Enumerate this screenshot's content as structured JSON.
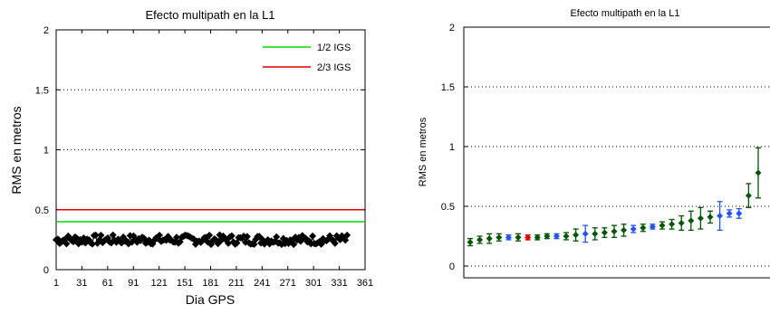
{
  "chart_data": [
    {
      "type": "line",
      "title": "Efecto multipath en la L1",
      "xlabel": "Dia GPS",
      "ylabel": "RMS en metros",
      "xlim": [
        1,
        361
      ],
      "ylim": [
        0,
        2
      ],
      "grid": "y-dotted",
      "x_tick_labels": [
        "1",
        "31",
        "61",
        "91",
        "121",
        "151",
        "181",
        "211",
        "241",
        "271",
        "301",
        "331",
        "361"
      ],
      "y_tick_labels": [
        "0",
        "0.5",
        "1",
        "1.5",
        "2"
      ],
      "y_ticks": [
        0,
        0.5,
        1,
        1.5,
        2
      ],
      "legend": "top-right",
      "series": [
        {
          "name": "1/2 IGS",
          "color": "#00dd00",
          "y_const": 0.4
        },
        {
          "name": "2/3 IGS",
          "color": "#dd0000",
          "y_const": 0.5
        },
        {
          "name": "",
          "color": "#000000",
          "marker": "diamond",
          "x_range": [
            1,
            340
          ],
          "y_mean": 0.25,
          "y_min": 0.21,
          "y_max": 0.29
        }
      ]
    },
    {
      "type": "scatter",
      "title": "Efecto multipath en la L1",
      "xlabel": "",
      "ylabel": "RMS en metros",
      "ylim": [
        0,
        2
      ],
      "grid": "y-dotted",
      "y_tick_labels": [
        "0",
        "0.5",
        "1",
        "1.5",
        "2"
      ],
      "y_ticks": [
        0,
        0.5,
        1,
        1.5,
        2
      ],
      "colors": {
        "green": "#005500",
        "blue": "#2255ee",
        "red": "#dd0000"
      },
      "points": [
        {
          "y": 0.2,
          "err": 0.03,
          "c": "green"
        },
        {
          "y": 0.22,
          "err": 0.03,
          "c": "green"
        },
        {
          "y": 0.23,
          "err": 0.04,
          "c": "green"
        },
        {
          "y": 0.24,
          "err": 0.03,
          "c": "green"
        },
        {
          "y": 0.24,
          "err": 0.02,
          "c": "blue"
        },
        {
          "y": 0.24,
          "err": 0.03,
          "c": "green"
        },
        {
          "y": 0.24,
          "err": 0.02,
          "c": "red"
        },
        {
          "y": 0.24,
          "err": 0.02,
          "c": "green"
        },
        {
          "y": 0.25,
          "err": 0.02,
          "c": "green"
        },
        {
          "y": 0.25,
          "err": 0.02,
          "c": "blue"
        },
        {
          "y": 0.25,
          "err": 0.03,
          "c": "green"
        },
        {
          "y": 0.26,
          "err": 0.05,
          "c": "green"
        },
        {
          "y": 0.27,
          "err": 0.07,
          "c": "blue"
        },
        {
          "y": 0.27,
          "err": 0.05,
          "c": "green"
        },
        {
          "y": 0.28,
          "err": 0.04,
          "c": "green"
        },
        {
          "y": 0.29,
          "err": 0.05,
          "c": "green"
        },
        {
          "y": 0.3,
          "err": 0.05,
          "c": "green"
        },
        {
          "y": 0.31,
          "err": 0.03,
          "c": "blue"
        },
        {
          "y": 0.32,
          "err": 0.03,
          "c": "green"
        },
        {
          "y": 0.33,
          "err": 0.02,
          "c": "blue"
        },
        {
          "y": 0.34,
          "err": 0.03,
          "c": "green"
        },
        {
          "y": 0.35,
          "err": 0.04,
          "c": "green"
        },
        {
          "y": 0.36,
          "err": 0.06,
          "c": "green"
        },
        {
          "y": 0.38,
          "err": 0.08,
          "c": "green"
        },
        {
          "y": 0.4,
          "err": 0.09,
          "c": "green"
        },
        {
          "y": 0.41,
          "err": 0.05,
          "c": "green"
        },
        {
          "y": 0.42,
          "err": 0.12,
          "c": "blue"
        },
        {
          "y": 0.44,
          "err": 0.03,
          "c": "blue"
        },
        {
          "y": 0.44,
          "err": 0.04,
          "c": "blue"
        },
        {
          "y": 0.59,
          "err": 0.1,
          "c": "green"
        },
        {
          "y": 0.78,
          "err": 0.21,
          "c": "green"
        }
      ]
    }
  ]
}
